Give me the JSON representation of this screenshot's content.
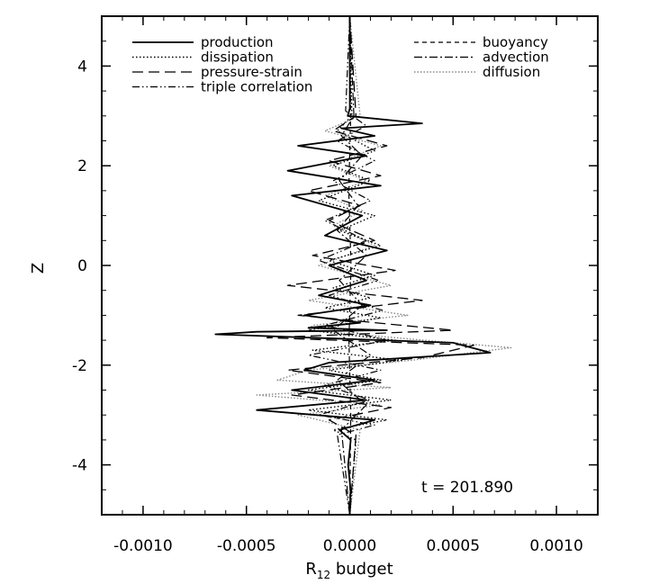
{
  "chart_data": {
    "type": "line",
    "orientation": "vertical-profile",
    "xlabel": {
      "main": "R",
      "sub": "12",
      "suffix": " budget"
    },
    "ylabel": "Z",
    "xlim": [
      -0.0012,
      0.0012
    ],
    "ylim": [
      -5,
      5
    ],
    "x_ticks": [
      -0.001,
      -0.0005,
      0.0,
      0.0005,
      0.001
    ],
    "x_tick_labels": [
      "-0.0010",
      "-0.0005",
      "0.0000",
      "0.0005",
      "0.0010"
    ],
    "y_ticks": [
      -4,
      -2,
      0,
      2,
      4
    ],
    "y_tick_labels": [
      "-4",
      "-2",
      "0",
      "2",
      "4"
    ],
    "grid": false,
    "legend_placement": "top, two columns",
    "annotation": "t = 201.890",
    "series": [
      {
        "name": "production",
        "style": "solid",
        "color": "#000000",
        "x": [
          0,
          5e-07,
          -1e-05,
          0.00035,
          -4e-05,
          0.00012,
          -0.00025,
          8e-05,
          -0.0003,
          0.00015,
          -0.00028,
          6e-05,
          -0.00012,
          0.00018,
          -0.0001,
          8e-05,
          -0.00015,
          0.0001,
          -0.00022,
          5e-05,
          -0.0002,
          0.00018,
          -0.00045,
          -0.00065,
          0.0005,
          0.00068,
          -0.0001,
          -0.00022,
          0.00012,
          -0.00028,
          8e-05,
          -0.00045,
          0.00012,
          -5e-05,
          5e-06,
          -8e-06,
          4e-06,
          0
        ],
        "y": [
          5,
          3.15,
          3.0,
          2.85,
          2.75,
          2.6,
          2.4,
          2.2,
          1.9,
          1.6,
          1.4,
          1.0,
          0.6,
          0.3,
          0.0,
          -0.3,
          -0.6,
          -0.8,
          -1.0,
          -1.15,
          -1.25,
          -1.3,
          -1.33,
          -1.38,
          -1.55,
          -1.75,
          -1.95,
          -2.1,
          -2.3,
          -2.5,
          -2.7,
          -2.9,
          -3.1,
          -3.3,
          -3.5,
          -4.0,
          -4.5,
          -5
        ]
      },
      {
        "name": "dissipation",
        "style": "dotted",
        "color": "#000000",
        "x": [
          0,
          1e-05,
          -6e-05,
          0.00012,
          -8e-05,
          0.0001,
          -0.00015,
          0.00012,
          -5e-05,
          0.00015,
          -0.0001,
          0.00012,
          -8e-05,
          0.0001,
          -0.00012,
          0.00015,
          -0.0002,
          0.00022,
          -0.00018,
          0.00025,
          -0.0001,
          0.00015,
          -0.0002,
          0.0002,
          -0.0002,
          0.00018,
          -8e-05,
          3e-05,
          0
        ],
        "y": [
          5,
          3.0,
          2.7,
          2.3,
          2.0,
          1.7,
          1.3,
          1.0,
          0.7,
          0.4,
          0.1,
          -0.2,
          -0.45,
          -0.65,
          -0.85,
          -1.05,
          -1.3,
          -1.5,
          -1.7,
          -1.9,
          -2.1,
          -2.3,
          -2.5,
          -2.7,
          -2.9,
          -3.1,
          -3.3,
          -3.5,
          -5
        ]
      },
      {
        "name": "pressure-strain",
        "style": "long-dash",
        "color": "#000000",
        "x": [
          0,
          3e-05,
          -8e-05,
          0.00018,
          -0.0001,
          0.00015,
          -0.0002,
          5e-05,
          -0.0001,
          0.00012,
          -0.00018,
          0.00022,
          -0.0003,
          0.00035,
          -0.00025,
          0.0005,
          -0.0004,
          0.0006,
          0.00035,
          -0.0003,
          0.00015,
          -0.00028,
          0.0002,
          -0.0001,
          3e-05,
          0
        ],
        "y": [
          5,
          3.0,
          2.7,
          2.4,
          2.1,
          1.8,
          1.5,
          1.2,
          0.9,
          0.5,
          0.2,
          -0.1,
          -0.4,
          -0.7,
          -1.0,
          -1.3,
          -1.45,
          -1.6,
          -1.85,
          -2.1,
          -2.35,
          -2.6,
          -2.85,
          -3.1,
          -3.4,
          -5
        ]
      },
      {
        "name": "triple correlation",
        "style": "dash-dot-dot",
        "color": "#000000",
        "x": [
          0,
          -2e-05,
          8e-05,
          -6e-05,
          0.00012,
          -8e-05,
          0.0001,
          -0.00012,
          8e-05,
          -0.00015,
          0.00014,
          -0.0001,
          0.00016,
          -0.00012,
          0.00018,
          -0.0002,
          0.00015,
          -0.00012,
          0.0001,
          -0.00015,
          0.00012,
          -6e-05,
          0
        ],
        "y": [
          5,
          3.1,
          2.8,
          2.5,
          2.1,
          1.7,
          1.3,
          0.9,
          0.5,
          0.1,
          -0.3,
          -0.6,
          -0.9,
          -1.2,
          -1.5,
          -1.8,
          -2.1,
          -2.4,
          -2.7,
          -3.0,
          -3.2,
          -3.4,
          -5
        ]
      },
      {
        "name": "buoyancy",
        "style": "short-dash",
        "color": "#000000",
        "x": [
          0,
          5e-06,
          -5e-06,
          6e-06,
          -4e-06,
          5e-06,
          0
        ],
        "y": [
          5,
          3.0,
          1.5,
          0.0,
          -1.5,
          -3.0,
          -5
        ]
      },
      {
        "name": "advection",
        "style": "dash-dot",
        "color": "#000000",
        "x": [
          0,
          2e-05,
          -4e-05,
          6e-05,
          -5e-05,
          4e-05,
          -6e-05,
          8e-05,
          -5e-05,
          6e-05,
          -8e-05,
          0.0001,
          -6e-05,
          8e-05,
          -4e-05,
          0
        ],
        "y": [
          5,
          3.0,
          2.6,
          2.2,
          1.7,
          1.2,
          0.7,
          0.2,
          -0.3,
          -0.8,
          -1.3,
          -1.8,
          -2.3,
          -2.8,
          -3.3,
          -5
        ]
      },
      {
        "name": "diffusion",
        "style": "dotted-gray",
        "color": "#888888",
        "x": [
          0,
          5e-05,
          -0.00012,
          0.00015,
          -0.0001,
          8e-05,
          -0.00012,
          6e-05,
          -8e-05,
          0.00012,
          -0.00015,
          0.0002,
          -0.0002,
          0.00028,
          -0.00018,
          -0.0002,
          0.00078,
          0.0003,
          -0.0002,
          -0.00035,
          0.0002,
          -0.00045,
          0.00015,
          -0.00025,
          5e-05,
          0
        ],
        "y": [
          5,
          3.0,
          2.7,
          2.4,
          2.0,
          1.7,
          1.4,
          1.1,
          0.8,
          0.4,
          0.0,
          -0.4,
          -0.7,
          -1.0,
          -1.2,
          -1.3,
          -1.65,
          -1.9,
          -2.1,
          -2.3,
          -2.45,
          -2.6,
          -2.8,
          -3.0,
          -3.3,
          -5
        ]
      }
    ]
  }
}
